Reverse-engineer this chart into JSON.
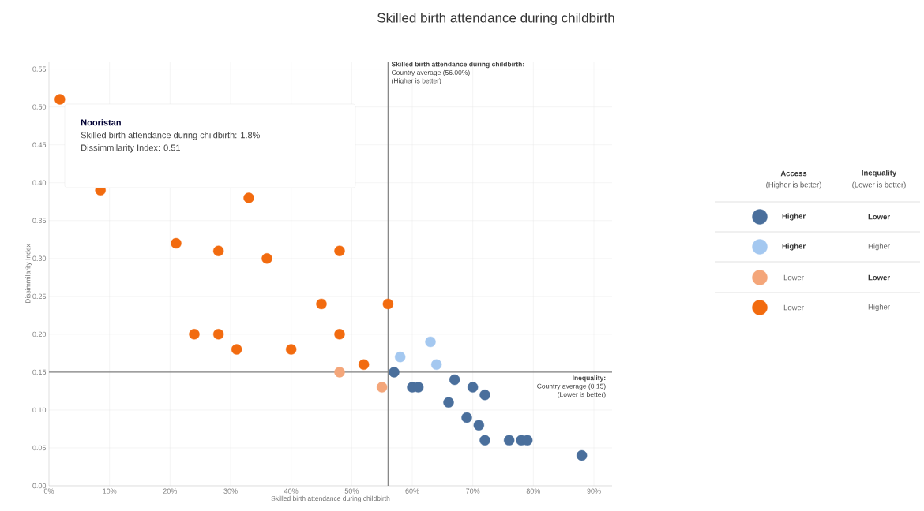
{
  "chart_data": {
    "type": "scatter",
    "title": "Skilled birth attendance during childbirth",
    "xlabel": "Skilled birth attendance during childbirth",
    "ylabel": "Dissimmilarity Index",
    "xlim": [
      0,
      93
    ],
    "ylim": [
      0,
      0.56
    ],
    "xticks": [
      {
        "value": 0,
        "label": "0%"
      },
      {
        "value": 10,
        "label": "10%"
      },
      {
        "value": 20,
        "label": "20%"
      },
      {
        "value": 30,
        "label": "30%"
      },
      {
        "value": 40,
        "label": "40%"
      },
      {
        "value": 50,
        "label": "50%"
      },
      {
        "value": 60,
        "label": "60%"
      },
      {
        "value": 70,
        "label": "70%"
      },
      {
        "value": 80,
        "label": "80%"
      },
      {
        "value": 90,
        "label": "90%"
      }
    ],
    "yticks": [
      {
        "value": 0,
        "label": "0.00"
      },
      {
        "value": 0.05,
        "label": "0.05"
      },
      {
        "value": 0.1,
        "label": "0.10"
      },
      {
        "value": 0.15,
        "label": "0.15"
      },
      {
        "value": 0.2,
        "label": "0.20"
      },
      {
        "value": 0.25,
        "label": "0.25"
      },
      {
        "value": 0.3,
        "label": "0.30"
      },
      {
        "value": 0.35,
        "label": "0.35"
      },
      {
        "value": 0.4,
        "label": "0.40"
      },
      {
        "value": 0.45,
        "label": "0.45"
      },
      {
        "value": 0.5,
        "label": "0.50"
      },
      {
        "value": 0.55,
        "label": "0.55"
      }
    ],
    "grid": true,
    "marker": "circle",
    "legend": "right",
    "series": [
      {
        "name": "Higher",
        "color": "#4a6f9c",
        "x": [
          57,
          60,
          61,
          67,
          70,
          72,
          66,
          69,
          71,
          72,
          76,
          78,
          79,
          88
        ],
        "values": [
          0.15,
          0.13,
          0.13,
          0.14,
          0.13,
          0.12,
          0.11,
          0.09,
          0.08,
          0.06,
          0.06,
          0.06,
          0.06,
          0.04
        ]
      },
      {
        "name": "Higher",
        "color": "#a4c8f0",
        "x": [
          58,
          63,
          64
        ],
        "values": [
          0.17,
          0.19,
          0.16
        ]
      },
      {
        "name": "Lower",
        "color": "#f4a67a",
        "x": [
          48,
          55
        ],
        "values": [
          0.15,
          0.13
        ]
      },
      {
        "name": "Lower",
        "color": "#f26b0f",
        "x": [
          1.8,
          8.5,
          21,
          28,
          33,
          36,
          48,
          45,
          56,
          24,
          28,
          31,
          40,
          48,
          52
        ],
        "values": [
          0.51,
          0.39,
          0.32,
          0.31,
          0.38,
          0.3,
          0.31,
          0.24,
          0.24,
          0.2,
          0.2,
          0.18,
          0.18,
          0.2,
          0.16
        ]
      }
    ],
    "ref_lines": [
      {
        "axis": "x",
        "value": 56,
        "label": "Skilled birth attendance during childbirth:",
        "color": "#808080"
      },
      {
        "axis": "y",
        "value": 0.15,
        "label": "Inequality:",
        "color": "#808080"
      }
    ],
    "annotations": [
      "Country average (56.00%)",
      "(Higher is better)",
      "Country average (0.15)",
      "(Lower is better)",
      "Nooristan",
      "Skilled birth attendance during childbirth: 1.8%",
      "Dissimmilarity Index: 0.51",
      "Access",
      "(Higher is better)",
      "Inequality",
      "(Lower is better)",
      "Lower",
      "Higher",
      "Lower",
      "Higher"
    ]
  }
}
